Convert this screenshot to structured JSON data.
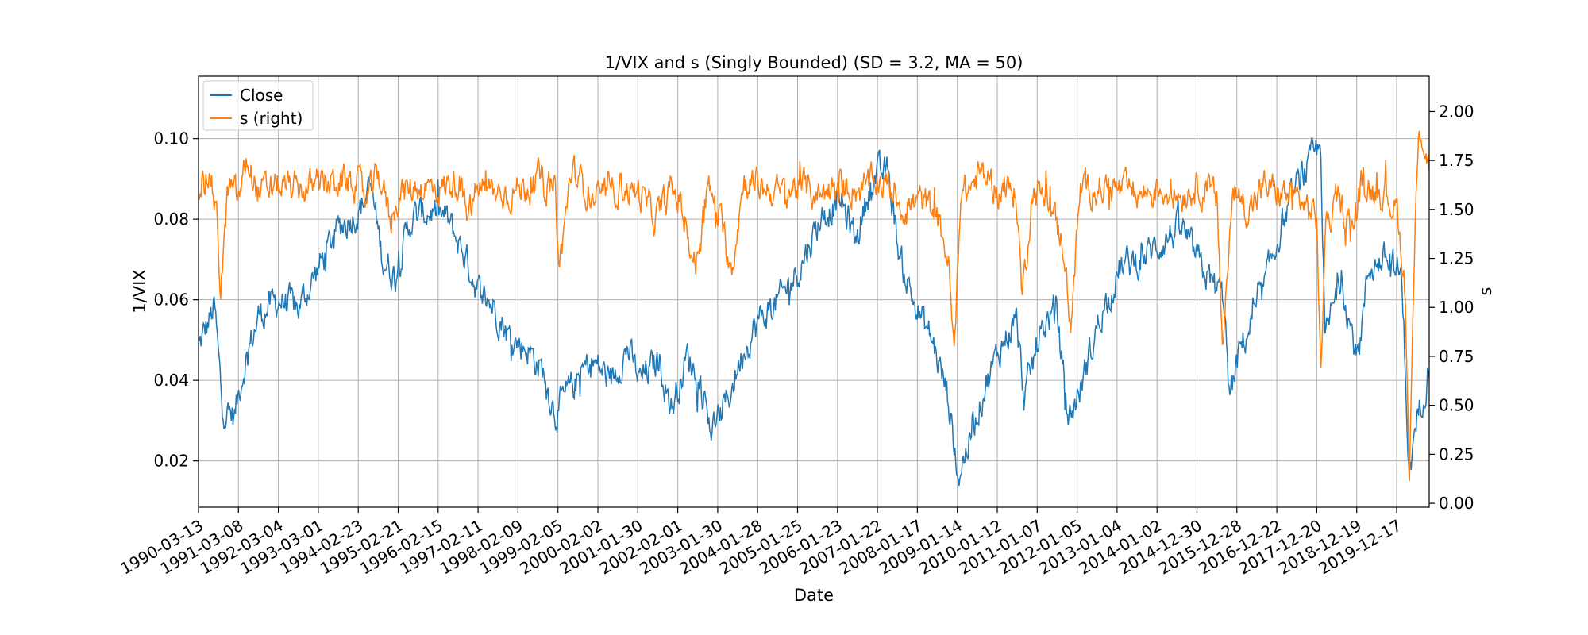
{
  "chart_data": {
    "type": "line",
    "title": "1/VIX and s (Singly Bounded) (SD = 3.2, MA = 50)",
    "xlabel": "Date",
    "ylabel_left": "1/VIX",
    "ylabel_right": "s",
    "grid": true,
    "legend_position": "top-left",
    "x_tick_labels": [
      "1990-03-13",
      "1991-03-08",
      "1992-03-04",
      "1993-03-01",
      "1994-02-23",
      "1995-02-21",
      "1996-02-15",
      "1997-02-11",
      "1998-02-09",
      "1999-02-05",
      "2000-02-02",
      "2001-01-30",
      "2002-02-01",
      "2003-01-30",
      "2004-01-28",
      "2005-01-25",
      "2006-01-23",
      "2007-01-22",
      "2008-01-17",
      "2009-01-14",
      "2010-01-12",
      "2011-01-07",
      "2012-01-05",
      "2013-01-04",
      "2014-01-02",
      "2014-12-30",
      "2015-12-28",
      "2016-12-22",
      "2017-12-20",
      "2018-12-19",
      "2019-12-17"
    ],
    "y_left_ticks": [
      "0.02",
      "0.04",
      "0.06",
      "0.08",
      "0.10"
    ],
    "y_right_ticks": [
      "0.00",
      "0.25",
      "0.50",
      "0.75",
      "1.00",
      "1.25",
      "1.50",
      "1.75",
      "2.00"
    ],
    "y_left_range": [
      0.0085,
      0.1155
    ],
    "y_right_range": [
      -0.02,
      2.18
    ],
    "x_range": [
      1990.0,
      2020.7
    ],
    "series": [
      {
        "name": "Close",
        "axis": "left",
        "color": "#1f77b4",
        "noise": 0.0042,
        "points": [
          [
            1990.0,
            0.048
          ],
          [
            1990.4,
            0.058
          ],
          [
            1990.6,
            0.033
          ],
          [
            1990.9,
            0.031
          ],
          [
            1991.1,
            0.042
          ],
          [
            1991.5,
            0.056
          ],
          [
            1992.0,
            0.06
          ],
          [
            1992.5,
            0.058
          ],
          [
            1993.0,
            0.068
          ],
          [
            1993.5,
            0.078
          ],
          [
            1994.0,
            0.082
          ],
          [
            1994.3,
            0.088
          ],
          [
            1994.6,
            0.07
          ],
          [
            1994.9,
            0.066
          ],
          [
            1995.3,
            0.08
          ],
          [
            1995.8,
            0.082
          ],
          [
            1996.2,
            0.08
          ],
          [
            1996.6,
            0.072
          ],
          [
            1997.0,
            0.062
          ],
          [
            1997.4,
            0.058
          ],
          [
            1997.8,
            0.05
          ],
          [
            1998.2,
            0.048
          ],
          [
            1998.6,
            0.042
          ],
          [
            1998.9,
            0.032
          ],
          [
            1999.3,
            0.038
          ],
          [
            1999.8,
            0.045
          ],
          [
            2000.3,
            0.04
          ],
          [
            2000.7,
            0.048
          ],
          [
            2001.0,
            0.04
          ],
          [
            2001.5,
            0.045
          ],
          [
            2001.8,
            0.033
          ],
          [
            2002.2,
            0.046
          ],
          [
            2002.5,
            0.04
          ],
          [
            2002.8,
            0.028
          ],
          [
            2003.2,
            0.035
          ],
          [
            2003.6,
            0.048
          ],
          [
            2004.0,
            0.055
          ],
          [
            2004.5,
            0.06
          ],
          [
            2005.0,
            0.068
          ],
          [
            2005.5,
            0.08
          ],
          [
            2006.0,
            0.085
          ],
          [
            2006.4,
            0.075
          ],
          [
            2006.8,
            0.09
          ],
          [
            2007.2,
            0.092
          ],
          [
            2007.5,
            0.07
          ],
          [
            2007.9,
            0.058
          ],
          [
            2008.3,
            0.05
          ],
          [
            2008.7,
            0.036
          ],
          [
            2008.95,
            0.016
          ],
          [
            2009.2,
            0.024
          ],
          [
            2009.6,
            0.038
          ],
          [
            2010.0,
            0.048
          ],
          [
            2010.4,
            0.055
          ],
          [
            2010.6,
            0.035
          ],
          [
            2011.0,
            0.052
          ],
          [
            2011.4,
            0.058
          ],
          [
            2011.7,
            0.03
          ],
          [
            2012.0,
            0.038
          ],
          [
            2012.5,
            0.056
          ],
          [
            2013.0,
            0.068
          ],
          [
            2013.5,
            0.07
          ],
          [
            2014.0,
            0.074
          ],
          [
            2014.5,
            0.078
          ],
          [
            2015.0,
            0.068
          ],
          [
            2015.6,
            0.06
          ],
          [
            2015.7,
            0.035
          ],
          [
            2016.0,
            0.048
          ],
          [
            2016.5,
            0.06
          ],
          [
            2017.0,
            0.078
          ],
          [
            2017.5,
            0.09
          ],
          [
            2018.0,
            0.098
          ],
          [
            2018.1,
            0.05
          ],
          [
            2018.5,
            0.066
          ],
          [
            2018.9,
            0.045
          ],
          [
            2019.2,
            0.068
          ],
          [
            2019.6,
            0.07
          ],
          [
            2020.0,
            0.066
          ],
          [
            2020.1,
            0.045
          ],
          [
            2020.2,
            0.016
          ],
          [
            2020.4,
            0.03
          ],
          [
            2020.7,
            0.044
          ]
        ]
      },
      {
        "name": "s (right)",
        "axis": "right",
        "color": "#ff7f0e",
        "noise": 0.085,
        "points": [
          [
            1990.0,
            1.62
          ],
          [
            1990.3,
            1.68
          ],
          [
            1990.45,
            1.45
          ],
          [
            1990.55,
            1.1
          ],
          [
            1990.75,
            1.62
          ],
          [
            1991.0,
            1.55
          ],
          [
            1991.2,
            1.75
          ],
          [
            1991.5,
            1.58
          ],
          [
            1992.0,
            1.62
          ],
          [
            1992.5,
            1.6
          ],
          [
            1993.0,
            1.62
          ],
          [
            1993.5,
            1.65
          ],
          [
            1994.0,
            1.62
          ],
          [
            1994.2,
            1.55
          ],
          [
            1994.5,
            1.68
          ],
          [
            1994.8,
            1.45
          ],
          [
            1995.0,
            1.58
          ],
          [
            1995.5,
            1.62
          ],
          [
            1996.0,
            1.6
          ],
          [
            1996.5,
            1.65
          ],
          [
            1996.7,
            1.45
          ],
          [
            1997.0,
            1.62
          ],
          [
            1997.5,
            1.58
          ],
          [
            1998.0,
            1.6
          ],
          [
            1998.5,
            1.66
          ],
          [
            1998.9,
            1.58
          ],
          [
            1999.0,
            1.2
          ],
          [
            1999.3,
            1.7
          ],
          [
            1999.7,
            1.6
          ],
          [
            2000.0,
            1.55
          ],
          [
            2000.5,
            1.62
          ],
          [
            2001.0,
            1.58
          ],
          [
            2001.4,
            1.45
          ],
          [
            2001.8,
            1.6
          ],
          [
            2002.0,
            1.55
          ],
          [
            2002.4,
            1.2
          ],
          [
            2002.7,
            1.62
          ],
          [
            2003.0,
            1.45
          ],
          [
            2003.3,
            1.2
          ],
          [
            2003.6,
            1.65
          ],
          [
            2004.0,
            1.62
          ],
          [
            2004.5,
            1.58
          ],
          [
            2005.0,
            1.62
          ],
          [
            2005.5,
            1.58
          ],
          [
            2006.0,
            1.62
          ],
          [
            2006.5,
            1.6
          ],
          [
            2007.0,
            1.65
          ],
          [
            2007.3,
            1.6
          ],
          [
            2007.6,
            1.5
          ],
          [
            2008.0,
            1.55
          ],
          [
            2008.4,
            1.48
          ],
          [
            2008.7,
            1.25
          ],
          [
            2008.85,
            0.75
          ],
          [
            2009.0,
            1.55
          ],
          [
            2009.5,
            1.68
          ],
          [
            2010.0,
            1.6
          ],
          [
            2010.4,
            1.58
          ],
          [
            2010.55,
            1.05
          ],
          [
            2010.8,
            1.6
          ],
          [
            2011.2,
            1.55
          ],
          [
            2011.6,
            1.3
          ],
          [
            2011.75,
            0.9
          ],
          [
            2012.0,
            1.6
          ],
          [
            2012.5,
            1.62
          ],
          [
            2013.0,
            1.6
          ],
          [
            2013.5,
            1.58
          ],
          [
            2014.0,
            1.6
          ],
          [
            2014.5,
            1.58
          ],
          [
            2015.0,
            1.62
          ],
          [
            2015.4,
            1.55
          ],
          [
            2015.55,
            0.8
          ],
          [
            2015.8,
            1.6
          ],
          [
            2016.2,
            1.5
          ],
          [
            2016.6,
            1.62
          ],
          [
            2017.0,
            1.58
          ],
          [
            2017.5,
            1.55
          ],
          [
            2017.9,
            1.45
          ],
          [
            2018.0,
            0.6
          ],
          [
            2018.1,
            1.4
          ],
          [
            2018.4,
            1.55
          ],
          [
            2018.8,
            1.4
          ],
          [
            2019.0,
            1.62
          ],
          [
            2019.5,
            1.6
          ],
          [
            2019.9,
            1.5
          ],
          [
            2020.1,
            1.1
          ],
          [
            2020.2,
            0.1
          ],
          [
            2020.35,
            1.4
          ],
          [
            2020.45,
            1.95
          ],
          [
            2020.7,
            1.72
          ]
        ]
      }
    ]
  }
}
